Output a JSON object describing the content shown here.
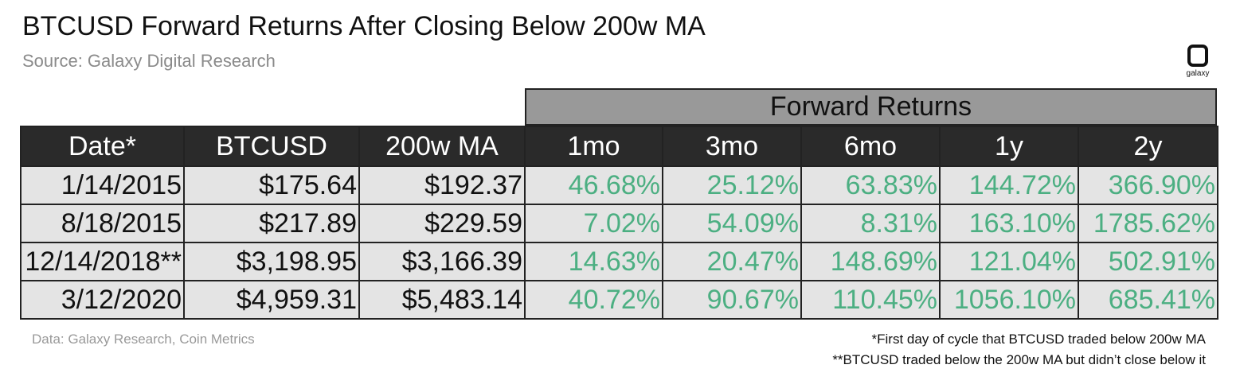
{
  "header": {
    "title": "BTCUSD Forward Returns After Closing Below 200w MA",
    "subtitle": "Source: Galaxy Digital Research",
    "logo_text": "galaxy"
  },
  "chart_data": {
    "type": "table",
    "group_header": "Forward Returns",
    "columns": [
      "Date*",
      "BTCUSD",
      "200w MA",
      "1mo",
      "3mo",
      "6mo",
      "1y",
      "2y"
    ],
    "rows": [
      [
        "1/14/2015",
        "$175.64",
        "$192.37",
        "46.68%",
        "25.12%",
        "63.83%",
        "144.72%",
        "366.90%"
      ],
      [
        "8/18/2015",
        "$217.89",
        "$229.59",
        "7.02%",
        "54.09%",
        "8.31%",
        "163.10%",
        "1785.62%"
      ],
      [
        "12/14/2018**",
        "$3,198.95",
        "$3,166.39",
        "14.63%",
        "20.47%",
        "148.69%",
        "121.04%",
        "502.91%"
      ],
      [
        "3/12/2020",
        "$4,959.31",
        "$5,483.14",
        "40.72%",
        "90.67%",
        "110.45%",
        "1056.10%",
        "685.41%"
      ]
    ],
    "colors": {
      "header_bg": "#2a2a2a",
      "group_header_bg": "#999999",
      "cell_bg": "#e4e4e4",
      "return_text": "#4caf82"
    }
  },
  "footer": {
    "data_source": "Data: Galaxy Research, Coin Metrics",
    "note1": "*First day of cycle that BTCUSD traded below 200w MA",
    "note2": "**BTCUSD traded below the 200w MA but didn’t close below it"
  }
}
